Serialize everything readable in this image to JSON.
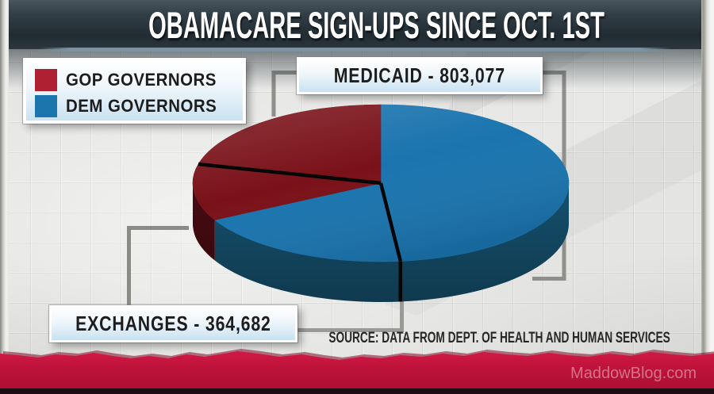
{
  "title_bar": {
    "title": "OBAMACARE SIGN-UPS SINCE OCT. 1ST"
  },
  "legend": {
    "items": [
      {
        "label": "GOP GOVERNORS",
        "swatch_color": "#af2132"
      },
      {
        "label": "DEM GOVERNORS",
        "swatch_color": "#1c74ac"
      }
    ]
  },
  "callout_labels": {
    "medicaid": "MEDICAID - 803,077",
    "exchanges": "EXCHANGES - 364,682"
  },
  "source_line": "SOURCE: DATA FROM DEPT. OF HEALTH AND HUMAN SERVICES",
  "footer": {
    "watermark": "MaddowBlog.com",
    "band_color": "#c4163f"
  },
  "chart_data": {
    "type": "pie",
    "style": "3d-ellipse",
    "title": "OBAMACARE SIGN-UPS SINCE OCT. 1ST",
    "legend_entries": [
      "GOP GOVERNORS",
      "DEM GOVERNORS"
    ],
    "category_totals": [
      {
        "label": "MEDICAID",
        "value": 803077
      },
      {
        "label": "EXCHANGES",
        "value": 364682
      }
    ],
    "angle_convention": "degrees clockwise from 12 o'clock; angles estimated from image",
    "slices": [
      {
        "name": "medicaid-dem-governors",
        "category": "MEDICAID",
        "group": "DEM GOVERNORS",
        "start_deg": 0,
        "end_deg": 174,
        "share_pct": 48.3,
        "top_color": "#1a74ae",
        "side_color": "#15506d"
      },
      {
        "name": "exchanges-dem-governors",
        "category": "EXCHANGES",
        "group": "DEM GOVERNORS",
        "start_deg": 174,
        "end_deg": 242,
        "share_pct": 18.9,
        "top_color": "#1a74ae",
        "side_color": "#15506d"
      },
      {
        "name": "exchanges-gop-governors",
        "category": "EXCHANGES",
        "group": "GOP GOVERNORS",
        "start_deg": 242,
        "end_deg": 284,
        "share_pct": 11.7,
        "top_color": "#7a1119",
        "side_color": "#470b12"
      },
      {
        "name": "medicaid-gop-governors",
        "category": "MEDICAID",
        "group": "GOP GOVERNORS",
        "start_deg": 284,
        "end_deg": 360,
        "share_pct": 21.1,
        "top_color": "#7a1119",
        "side_color": "#470b12"
      }
    ],
    "divider_lines_deg": [
      174,
      284
    ],
    "geometry_note": "flat 3-D pie, tilted ellipse, black lines separate same-colored adjacent slices"
  }
}
